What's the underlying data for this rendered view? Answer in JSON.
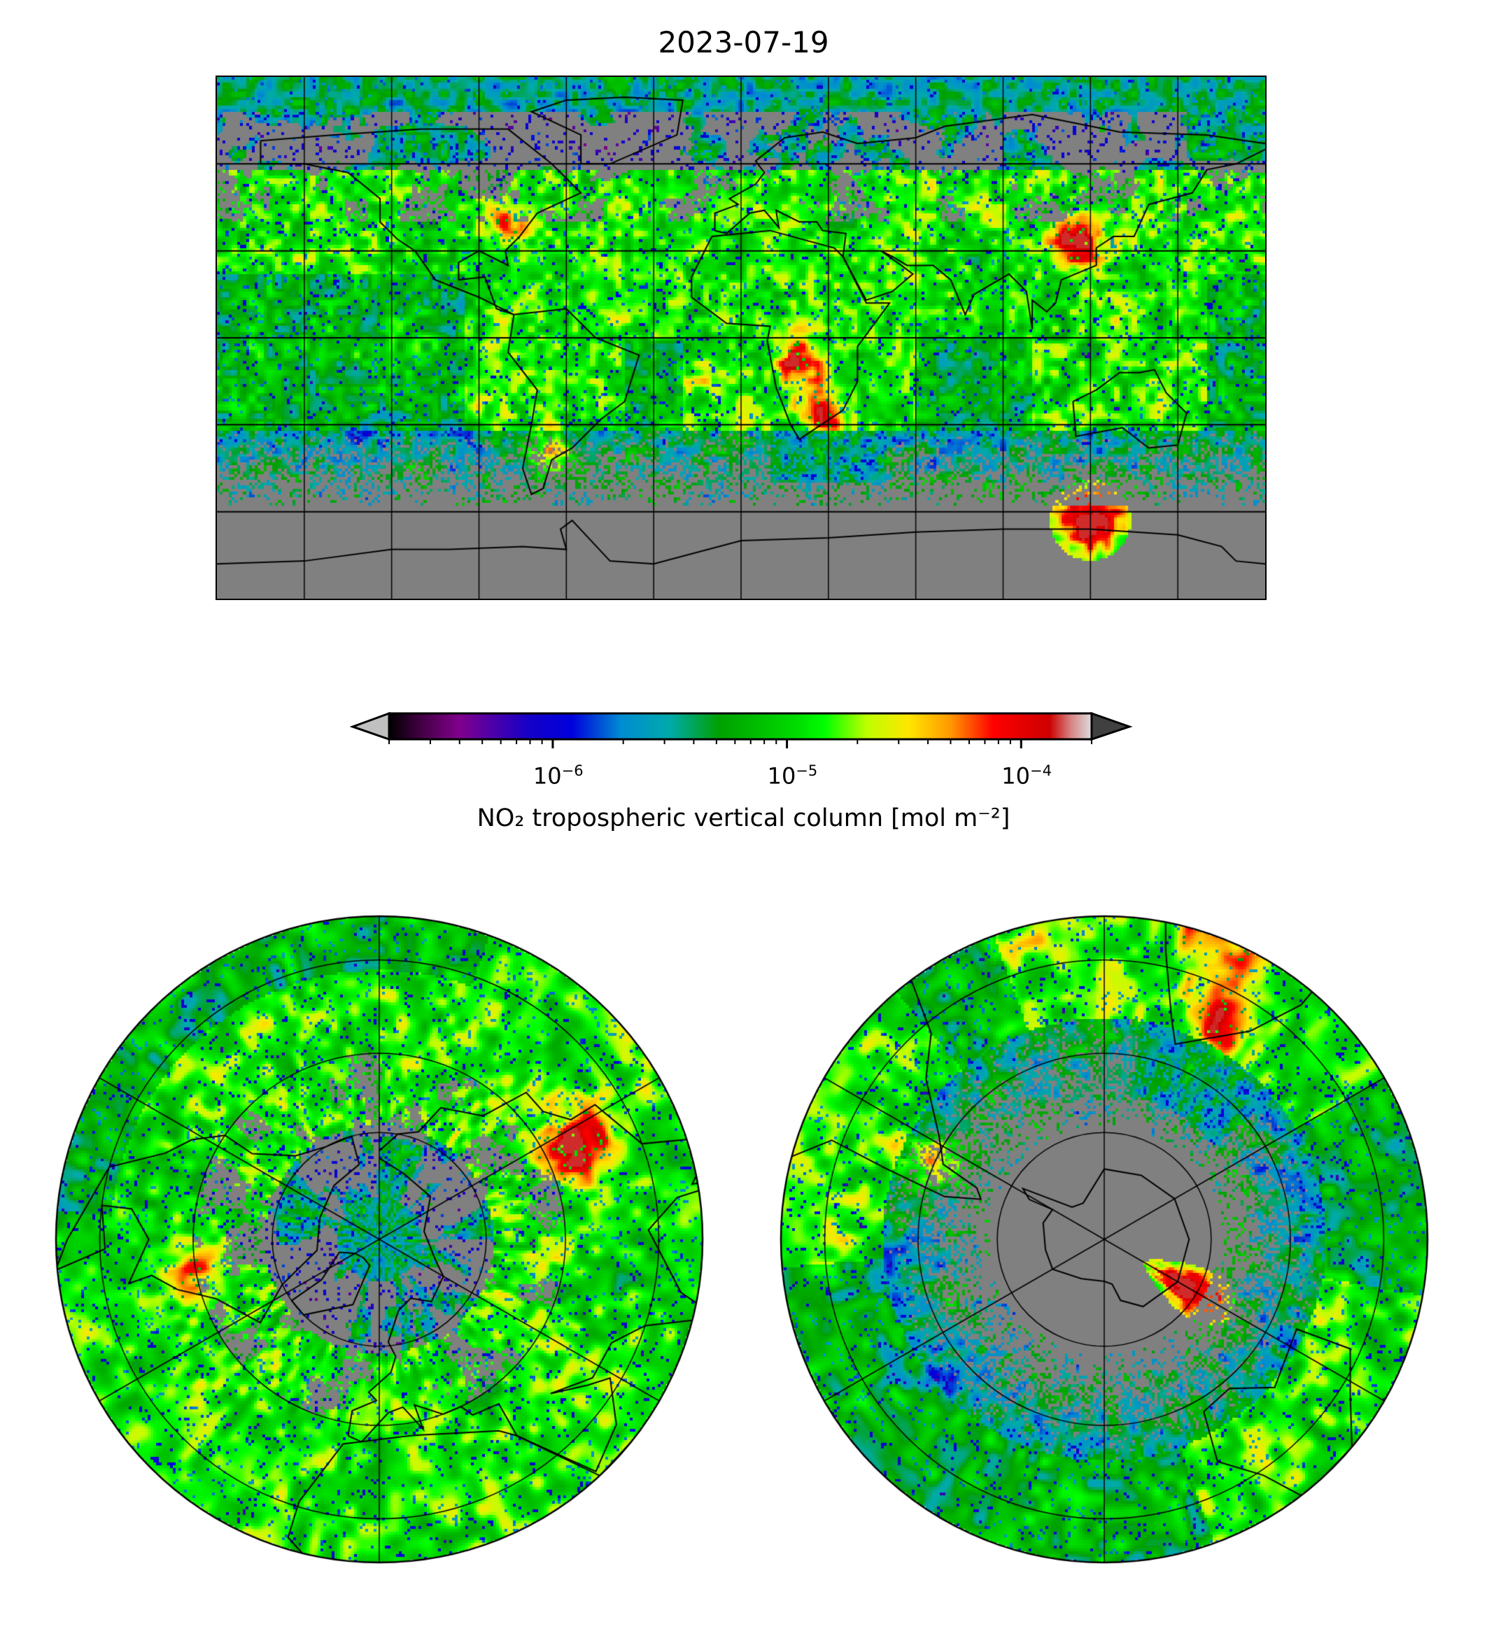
{
  "chart_data": {
    "type": "heatmap",
    "title": "2023-07-19",
    "panels": [
      "global map",
      "north polar map",
      "south polar map"
    ],
    "colorbar": {
      "label": "NO₂ tropospheric vertical column [mol m⁻²]",
      "scale": "log",
      "range": [
        2e-07,
        0.0002
      ],
      "extend": "both",
      "major_ticks": [
        1e-06,
        1e-05,
        0.0001
      ],
      "tick_labels": [
        {
          "base": "10",
          "exp": "−6"
        },
        {
          "base": "10",
          "exp": "−5"
        },
        {
          "base": "10",
          "exp": "−4"
        }
      ]
    },
    "gridlines": {
      "global_lon_step_deg": 30,
      "global_lat_step_deg": 30,
      "polar_meridian_step_deg": 60,
      "polar_lat_circles_deg": [
        20,
        40,
        60
      ]
    },
    "hotspots": [
      {
        "region": "Eastern China",
        "lon": 115,
        "lat": 33,
        "value": 0.00015
      },
      {
        "region": "Eastern US",
        "lon": -80,
        "lat": 40,
        "value": 5e-05
      },
      {
        "region": "Central Africa",
        "lon": 20,
        "lat": -8,
        "value": 0.00012
      },
      {
        "region": "South Africa",
        "lon": 28,
        "lat": -26,
        "value": 0.0001
      },
      {
        "region": "Argentina",
        "lon": -64,
        "lat": -40,
        "value": 0.0001
      },
      {
        "region": "Southern Ocean",
        "lon": 120,
        "lat": -63,
        "value": 0.00015
      }
    ],
    "colors": {
      "nodata": "#808080",
      "under": "#c0c0c0",
      "over": "#404040"
    }
  }
}
